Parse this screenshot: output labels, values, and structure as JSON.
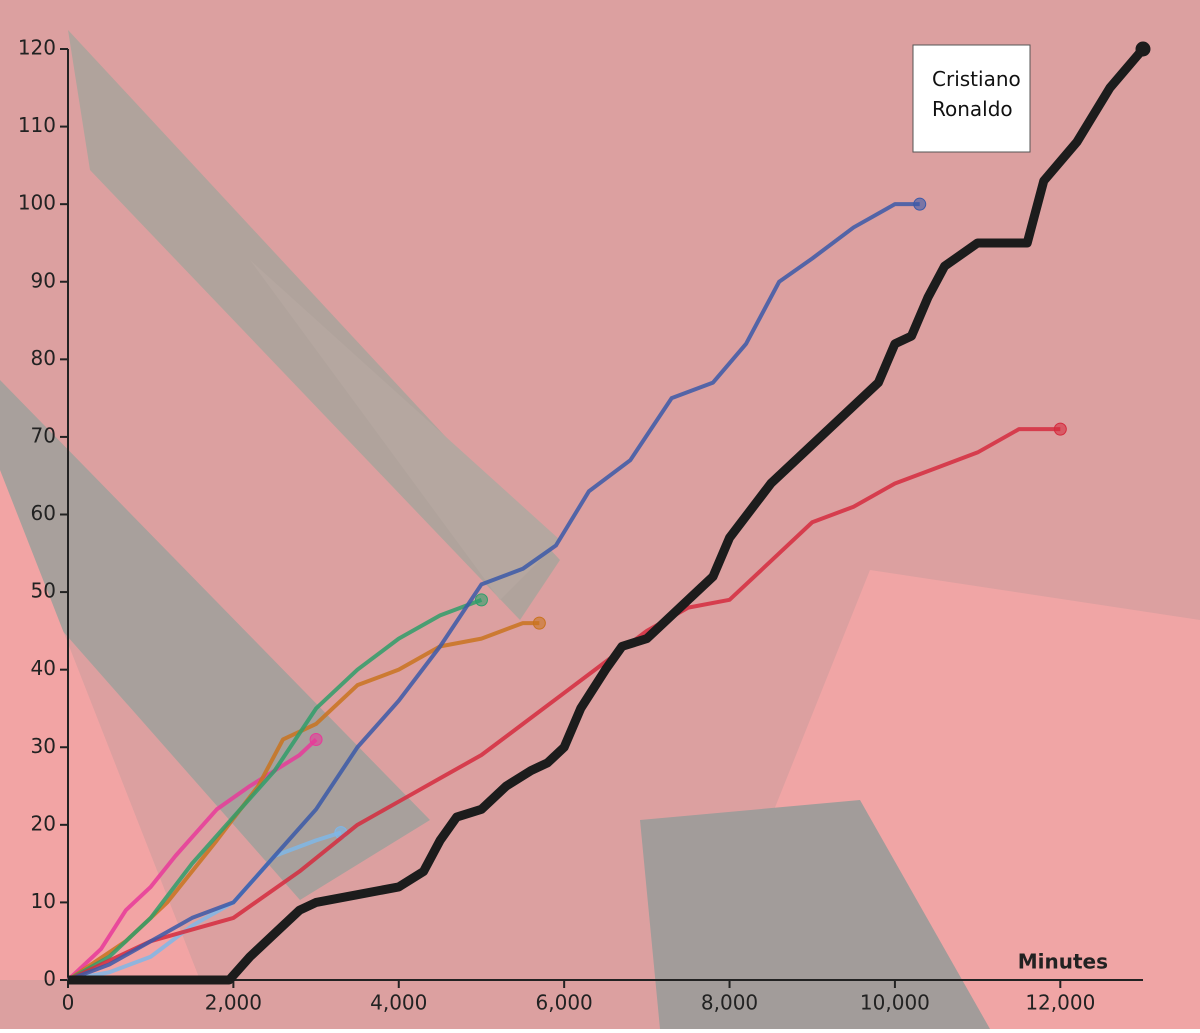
{
  "chart_data": {
    "type": "line",
    "annotation": "Cristiano\nRonaldo",
    "x_label": "Minutes",
    "xlim": [
      0,
      13000
    ],
    "ylim": [
      0,
      120
    ],
    "xticks": [
      0,
      {
        "value": 2000,
        "label": "2,000"
      },
      {
        "value": 4000,
        "label": "4,000"
      },
      {
        "value": 6000,
        "label": "6,000"
      },
      {
        "value": 8000,
        "label": "8,000"
      },
      {
        "value": 10000,
        "label": "10,000"
      },
      {
        "value": 12000,
        "label": "12,000"
      }
    ],
    "yticks": [
      0,
      10,
      20,
      30,
      40,
      50,
      60,
      70,
      80,
      90,
      100,
      110,
      120
    ],
    "series": [
      {
        "color": "#7fb7e8",
        "x": [
          0,
          500,
          1000,
          1500,
          2000,
          2500,
          3000,
          3300
        ],
        "values": [
          0,
          1,
          3,
          7,
          10,
          16,
          18,
          19
        ]
      },
      {
        "color": "#e8399a",
        "x": [
          0,
          400,
          700,
          1000,
          1300,
          1800,
          2200,
          2500,
          2800,
          3000
        ],
        "values": [
          0,
          4,
          9,
          12,
          16,
          22,
          25,
          27,
          29,
          31
        ]
      },
      {
        "color": "#c9731e",
        "x": [
          0,
          700,
          1200,
          1800,
          2300,
          2600,
          3000,
          3500,
          4000,
          4500,
          5000,
          5500,
          5700
        ],
        "values": [
          0,
          5,
          10,
          18,
          25,
          31,
          33,
          38,
          40,
          43,
          44,
          46,
          46
        ]
      },
      {
        "color": "#2f9e6a",
        "x": [
          0,
          500,
          1000,
          1500,
          2000,
          2500,
          3000,
          3500,
          4000,
          4500,
          5000
        ],
        "values": [
          0,
          3,
          8,
          15,
          21,
          27,
          35,
          40,
          44,
          47,
          49
        ]
      },
      {
        "color": "#d52b3e",
        "x": [
          0,
          1000,
          2000,
          2800,
          3500,
          4000,
          4500,
          5000,
          5500,
          6000,
          6500,
          7000,
          7500,
          8000,
          8500,
          9000,
          9500,
          10000,
          10500,
          11000,
          11500,
          12000
        ],
        "values": [
          0,
          5,
          8,
          14,
          20,
          23,
          26,
          29,
          33,
          37,
          41,
          45,
          48,
          49,
          54,
          59,
          61,
          64,
          66,
          68,
          71,
          71
        ]
      },
      {
        "color": "#3b59a8",
        "x": [
          0,
          500,
          1000,
          1500,
          2000,
          2500,
          3000,
          3500,
          4000,
          4500,
          5000,
          5500,
          5900,
          6300,
          6800,
          7300,
          7800,
          8200,
          8600,
          9000,
          9500,
          10000,
          10300
        ],
        "values": [
          0,
          2,
          5,
          8,
          10,
          16,
          22,
          30,
          36,
          43,
          51,
          53,
          56,
          63,
          67,
          75,
          77,
          82,
          90,
          93,
          97,
          100,
          100
        ]
      },
      {
        "name": "Cristiano\nRonaldo",
        "color": "#1c1c1c",
        "x": [
          0,
          1950,
          2200,
          2500,
          2800,
          3000,
          3500,
          4000,
          4300,
          4500,
          4700,
          5000,
          5300,
          5600,
          5800,
          6000,
          6200,
          6500,
          6700,
          7000,
          7500,
          7800,
          8000,
          8500,
          9000,
          9500,
          9800,
          10000,
          10200,
          10400,
          10600,
          11000,
          11600,
          11800,
          12200,
          12600,
          13000
        ],
        "values": [
          0,
          0,
          3,
          6,
          9,
          10,
          11,
          12,
          14,
          18,
          21,
          22,
          25,
          27,
          28,
          30,
          35,
          40,
          43,
          44,
          49,
          52,
          57,
          64,
          69,
          74,
          77,
          82,
          83,
          88,
          92,
          95,
          95,
          103,
          108,
          115,
          120
        ]
      }
    ]
  }
}
